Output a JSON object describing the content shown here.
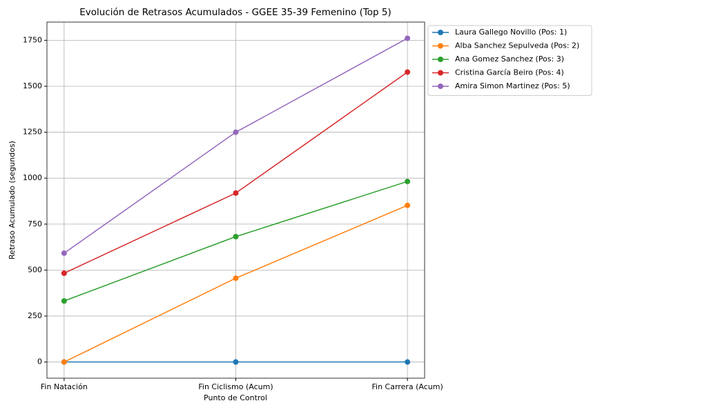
{
  "chart_data": {
    "type": "line",
    "title": "Evolución de Retrasos Acumulados - GGEE 35-39 Femenino (Top 5)",
    "x_label": "Punto de Control",
    "y_label": "Retraso Acumulado (segundos)",
    "categories": [
      "Fin Natación",
      "Fin Ciclismo (Acum)",
      "Fin Carrera (Acum)"
    ],
    "series": [
      {
        "name": "Laura Gallego Novillo (Pos: 1)",
        "color": "#1f77b4",
        "values": [
          0,
          0,
          0
        ]
      },
      {
        "name": "Alba Sanchez Sepulveda (Pos: 2)",
        "color": "#ff7f0e",
        "values": [
          0,
          456,
          852
        ]
      },
      {
        "name": "Ana Gomez Sanchez (Pos: 3)",
        "color": "#2ca02c",
        "values": [
          332,
          682,
          982
        ]
      },
      {
        "name": "Cristina García Beiro (Pos: 4)",
        "color": "#d62728",
        "values": [
          483,
          919,
          1577
        ]
      },
      {
        "name": "Amira Simon Martinez (Pos: 5)",
        "color": "#9467bd",
        "values": [
          592,
          1250,
          1761
        ]
      }
    ],
    "ylim": [
      -88,
      1849
    ],
    "yticks": [
      0,
      250,
      500,
      750,
      1000,
      1250,
      1500,
      1750
    ],
    "grid": true,
    "legend_loc": "outside-upper-right"
  }
}
